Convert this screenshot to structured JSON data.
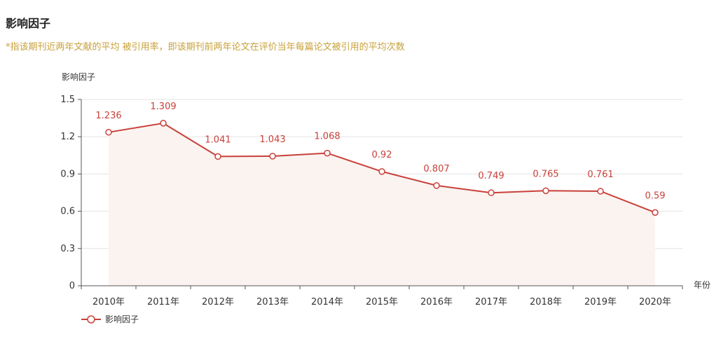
{
  "header": {
    "title": "影响因子",
    "subtitle": "*指该期刊近两年文献的平均 被引用率，即该期刊前两年论文在评价当年每篇论文被引用的平均次数"
  },
  "colors": {
    "line": "#c9403a",
    "area": "#faf3f0",
    "grid": "#e3e3e3",
    "axis": "#555555"
  },
  "chart_data": {
    "type": "line",
    "categories": [
      "2010年",
      "2011年",
      "2012年",
      "2013年",
      "2014年",
      "2015年",
      "2016年",
      "2017年",
      "2018年",
      "2019年",
      "2020年"
    ],
    "series": [
      {
        "name": "影响因子",
        "values": [
          1.236,
          1.309,
          1.041,
          1.043,
          1.068,
          0.92,
          0.807,
          0.749,
          0.765,
          0.761,
          0.59
        ],
        "labels": [
          "1.236",
          "1.309",
          "1.041",
          "1.043",
          "1.068",
          "0.92",
          "0.807",
          "0.749",
          "0.765",
          "0.761",
          "0.59"
        ]
      }
    ],
    "xlabel": "年份",
    "ylabel": "影响因子",
    "ylim": [
      0,
      1.5
    ],
    "yticks": [
      "0",
      "0.3",
      "0.6",
      "0.9",
      "1.2",
      "1.5"
    ],
    "grid": true,
    "area_fill": true,
    "legend": "bottom-left"
  }
}
